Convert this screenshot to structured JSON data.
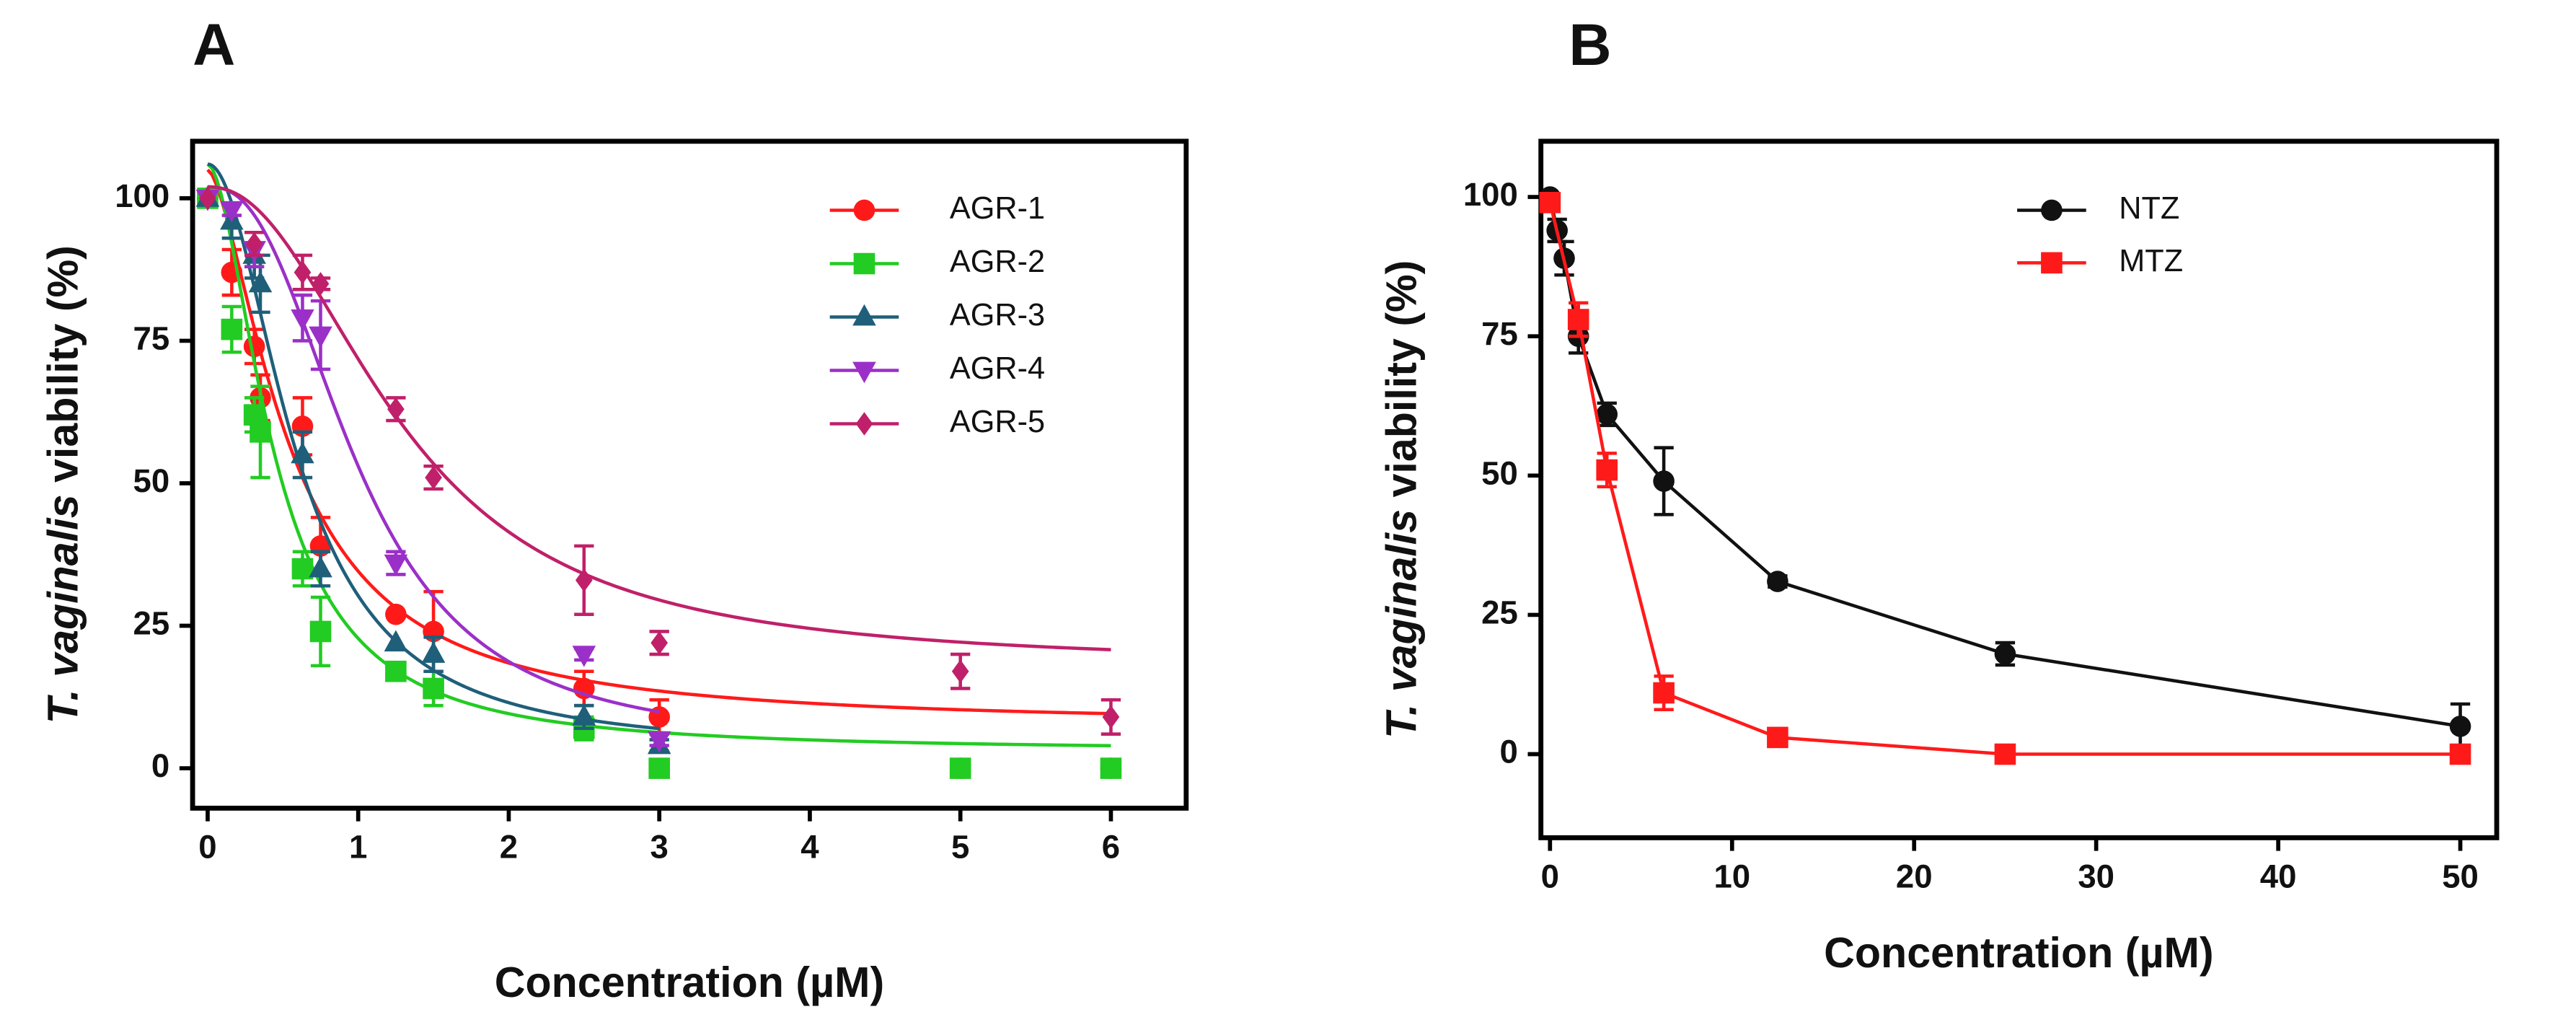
{
  "chart_data": [
    {
      "type": "scatter",
      "panel": "A",
      "x_label": "Concentration (µM)",
      "y_label": {
        "italic": "T. vaginalis",
        "rest": " viability (%)"
      },
      "xlim": [
        -0.1,
        6.5
      ],
      "ylim": [
        -7,
        110
      ],
      "xticks": [
        0,
        1,
        2,
        3,
        4,
        5,
        6
      ],
      "yticks": [
        0,
        25,
        50,
        75,
        100
      ],
      "legend": "upper right",
      "series": [
        {
          "name": "AGR-1",
          "color": "#ff1a1a",
          "marker": "circle",
          "x": [
            0,
            0.16,
            0.31,
            0.35,
            0.63,
            0.75,
            1.25,
            1.5,
            2.5,
            3,
            5,
            6
          ],
          "values": [
            100,
            87,
            74,
            65,
            60,
            39,
            27,
            24,
            14,
            9,
            0,
            0
          ],
          "errors": [
            0,
            4,
            3,
            4,
            5,
            5,
            0,
            7,
            3,
            3,
            0,
            0
          ],
          "fit": {
            "top": 105,
            "bottom": 7.5,
            "ec50": 0.55,
            "hill": 1.6
          }
        },
        {
          "name": "AGR-2",
          "color": "#22cc22",
          "marker": "square",
          "x": [
            0,
            0.16,
            0.31,
            0.35,
            0.63,
            0.75,
            1.25,
            1.5,
            2.5,
            3,
            5,
            6
          ],
          "values": [
            100,
            77,
            62,
            59,
            35,
            24,
            17,
            14,
            7,
            0,
            0,
            0
          ],
          "errors": [
            0,
            4,
            3,
            8,
            3,
            6,
            0,
            3,
            2,
            0,
            0,
            0
          ],
          "fit": {
            "top": 106,
            "bottom": 3,
            "ec50": 0.45,
            "hill": 1.8
          }
        },
        {
          "name": "AGR-3",
          "color": "#1f5f7a",
          "marker": "triangle-up",
          "x": [
            0,
            0.16,
            0.31,
            0.35,
            0.63,
            0.75,
            1.25,
            1.5,
            2.5,
            3
          ],
          "values": [
            100,
            96,
            90,
            85,
            55,
            35,
            22,
            20,
            9,
            4
          ],
          "errors": [
            0,
            3,
            4,
            5,
            4,
            3,
            0,
            3,
            2,
            1
          ],
          "fit": {
            "top": 106,
            "bottom": 3,
            "ec50": 0.6,
            "hill": 2
          }
        },
        {
          "name": "AGR-4",
          "color": "#9b30c8",
          "marker": "triangle-down",
          "x": [
            0,
            0.16,
            0.31,
            0.63,
            0.75,
            1.25,
            2.5,
            3
          ],
          "values": [
            100,
            98,
            91,
            79,
            76,
            36,
            20,
            5
          ],
          "errors": [
            0,
            1,
            3,
            4,
            6,
            2,
            1,
            1
          ],
          "fit": {
            "top": 102,
            "bottom": 4,
            "ec50": 1.0,
            "hill": 2.5
          }
        },
        {
          "name": "AGR-5",
          "color": "#c0206a",
          "marker": "diamond",
          "x": [
            0,
            0.31,
            0.63,
            0.75,
            1.25,
            1.5,
            2.5,
            3,
            5,
            6
          ],
          "values": [
            100,
            92,
            87,
            85,
            63,
            51,
            33,
            22,
            17,
            9
          ],
          "errors": [
            0,
            2,
            3,
            1,
            2,
            2,
            6,
            2,
            3,
            3
          ],
          "fit": {
            "top": 102,
            "bottom": 18,
            "ec50": 1.3,
            "hill": 2.2
          }
        }
      ]
    },
    {
      "type": "line",
      "panel": "B",
      "x_label": "Concentration (µM)",
      "y_label": {
        "italic": "T. vaginalis",
        "rest": " viability (%)"
      },
      "xlim": [
        -0.5,
        52
      ],
      "ylim": [
        -15,
        110
      ],
      "xticks": [
        0,
        10,
        20,
        30,
        40,
        50
      ],
      "yticks": [
        0,
        25,
        50,
        75,
        100
      ],
      "legend": "upper right",
      "series": [
        {
          "name": "NTZ",
          "color": "#111111",
          "marker": "circle",
          "x": [
            0,
            0.39,
            0.78,
            1.56,
            3.125,
            6.25,
            12.5,
            25,
            50
          ],
          "values": [
            100,
            94,
            89,
            75,
            61,
            49,
            31,
            18,
            5
          ],
          "errors": [
            0,
            2,
            3,
            3,
            2,
            6,
            1,
            2,
            4
          ]
        },
        {
          "name": "MTZ",
          "color": "#ff1a1a",
          "marker": "square",
          "x": [
            0,
            1.56,
            3.125,
            6.25,
            12.5,
            25,
            50
          ],
          "values": [
            99,
            78,
            51,
            11,
            3,
            0,
            0
          ],
          "errors": [
            0,
            3,
            3,
            3,
            1,
            0,
            1
          ]
        }
      ]
    }
  ]
}
